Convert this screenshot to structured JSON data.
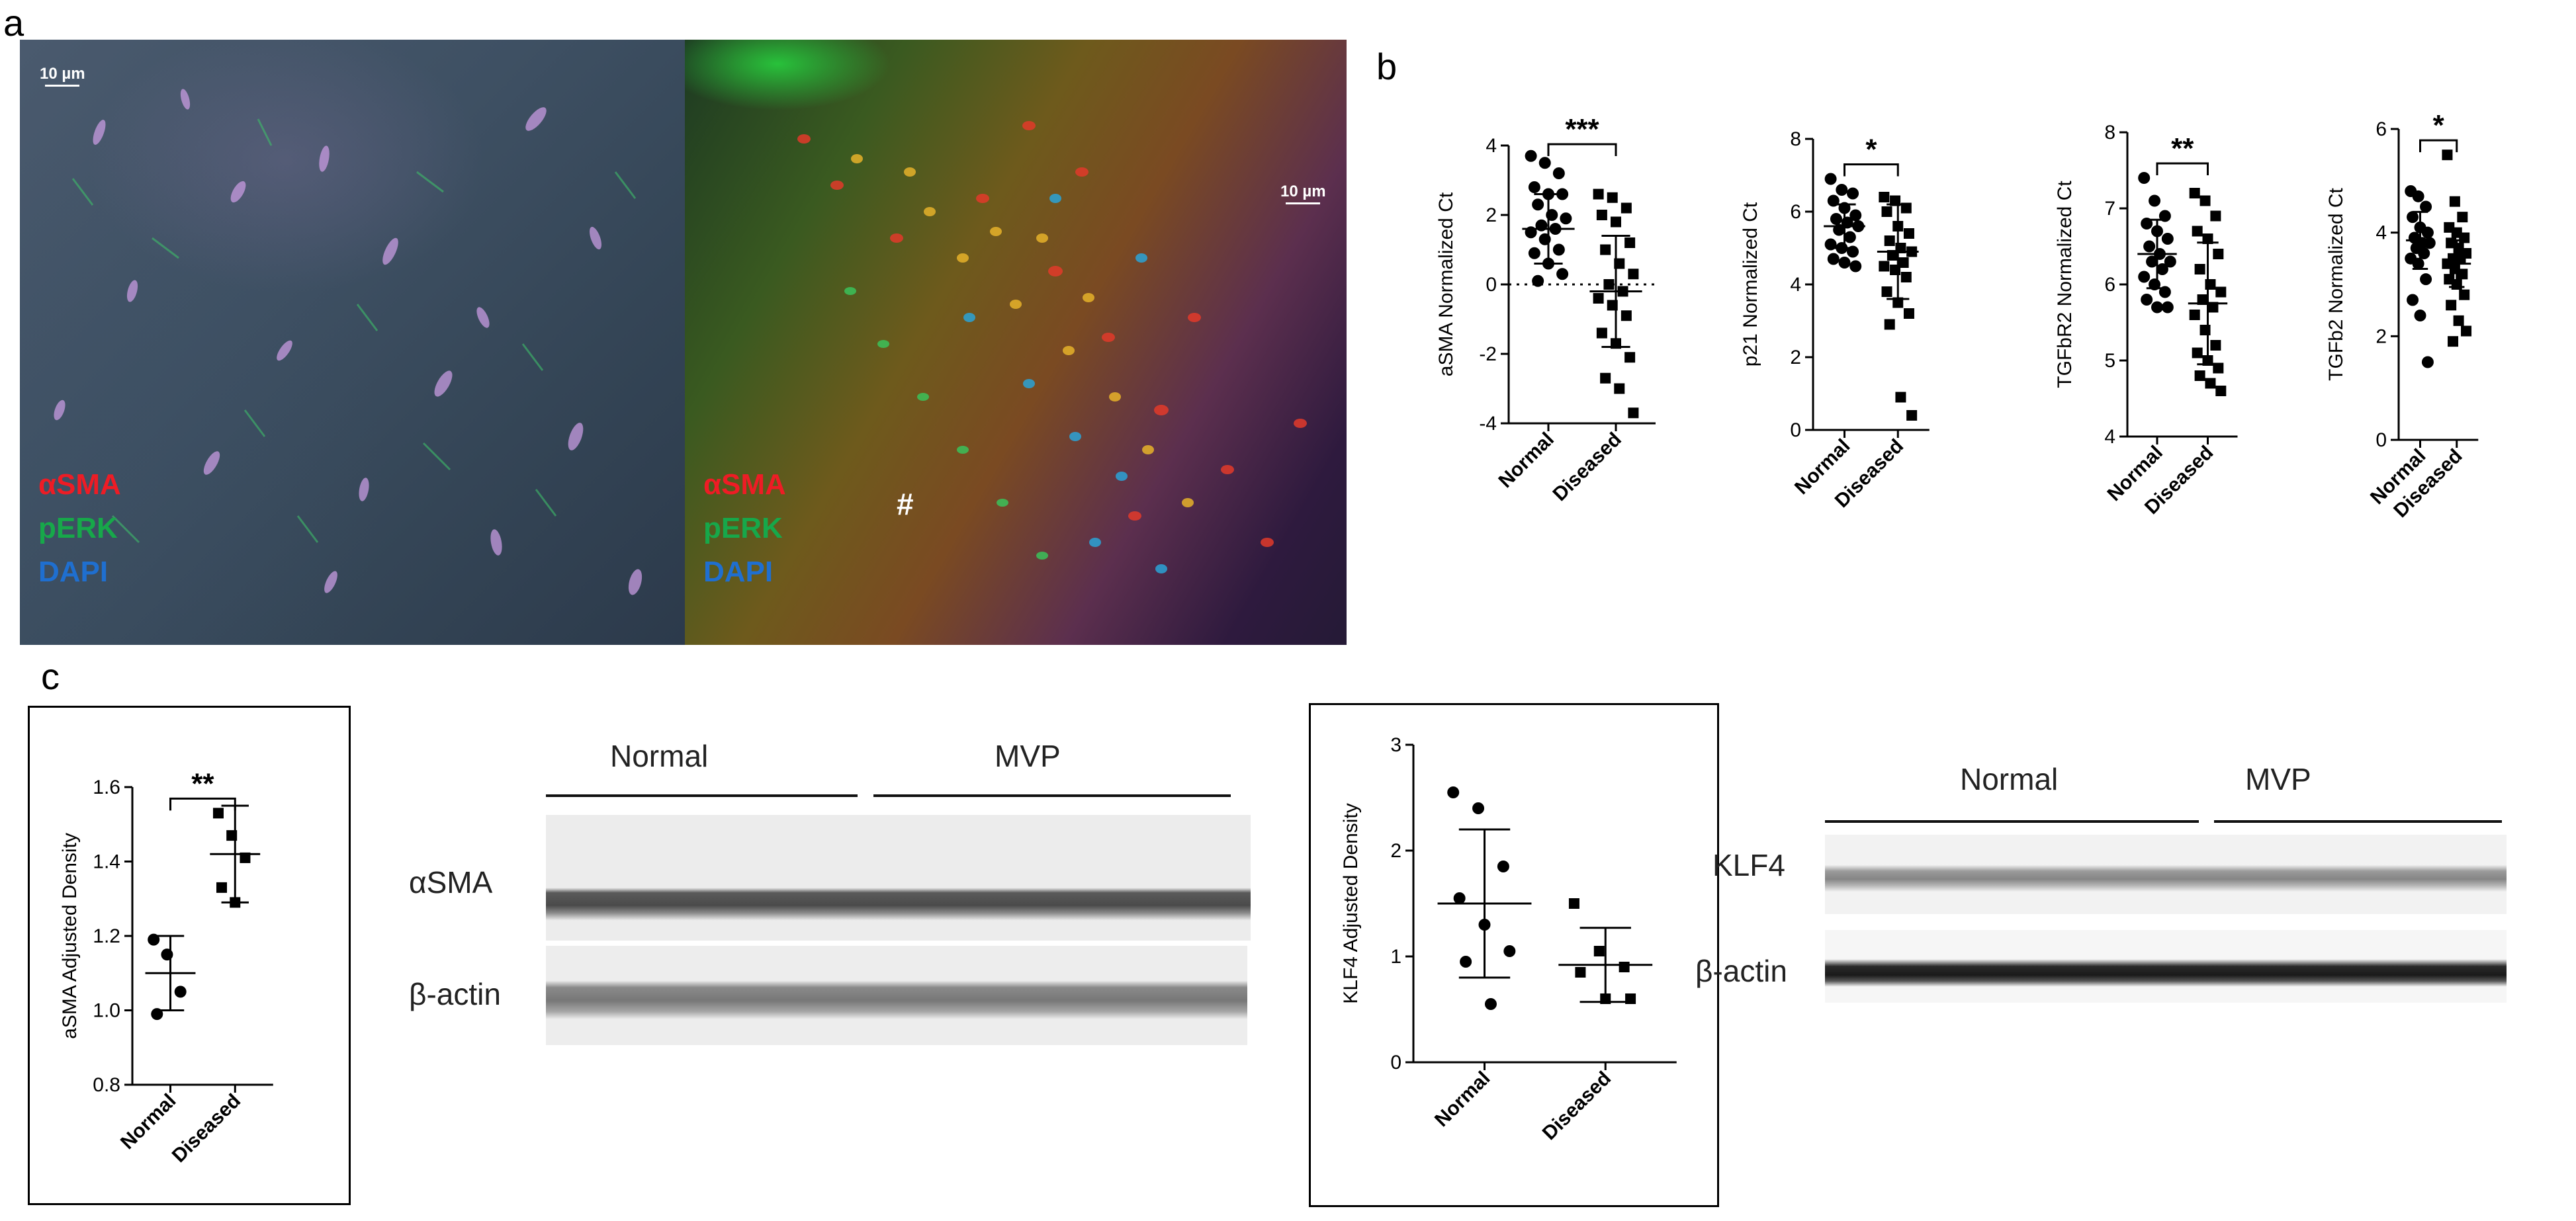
{
  "panels": {
    "a": "a",
    "b": "b",
    "c": "c"
  },
  "micrographs": [
    {
      "scale_bar": "10 µm",
      "stains": [
        "αSMA",
        "pERK",
        "DAPI"
      ],
      "hash": ""
    },
    {
      "scale_bar": "10 µm",
      "stains": [
        "αSMA",
        "pERK",
        "DAPI"
      ],
      "hash": "#"
    }
  ],
  "stain_colors": [
    "#ee1c25",
    "#17a84a",
    "#1f6fd0"
  ],
  "blots": {
    "asma": {
      "groups": [
        "Normal",
        "MVP"
      ],
      "rows": [
        "αSMA",
        "β-actin"
      ]
    },
    "klf4": {
      "groups": [
        "Normal",
        "MVP"
      ],
      "rows": [
        "KLF4",
        "β-actin"
      ]
    }
  },
  "chart_data": [
    {
      "type": "scatter",
      "ylabel": "aSMA Normalized Ct",
      "categories": [
        "Normal",
        "Diseased"
      ],
      "ylim": [
        -4,
        4
      ],
      "yticks": [
        -4,
        -2,
        0,
        2,
        4
      ],
      "zero_line": true,
      "significance": "***",
      "series": [
        {
          "values": [
            3.7,
            3.5,
            3.2,
            2.8,
            2.6,
            2.6,
            2.3,
            2.0,
            1.9,
            1.7,
            1.6,
            1.5,
            1.3,
            1.0,
            0.9,
            0.6,
            0.3,
            0.1
          ],
          "mean": 1.6,
          "sd": 1.0
        },
        {
          "values": [
            2.6,
            2.5,
            2.2,
            2.0,
            1.8,
            1.2,
            1.0,
            0.6,
            0.3,
            0.0,
            -0.2,
            -0.4,
            -0.6,
            -0.9,
            -1.4,
            -1.7,
            -2.1,
            -2.7,
            -3.0,
            -3.7
          ],
          "mean": -0.2,
          "sd": 1.6
        }
      ]
    },
    {
      "type": "scatter",
      "ylabel": "p21 Normalized Ct",
      "categories": [
        "Normal",
        "Diseased"
      ],
      "ylim": [
        0,
        8
      ],
      "yticks": [
        0,
        2,
        4,
        6,
        8
      ],
      "significance": "*",
      "series": [
        {
          "values": [
            6.9,
            6.6,
            6.5,
            6.3,
            6.1,
            5.9,
            5.8,
            5.7,
            5.6,
            5.5,
            5.3,
            5.1,
            5.0,
            4.9,
            4.7,
            4.6,
            4.5
          ],
          "mean": 5.6,
          "sd": 0.6
        },
        {
          "values": [
            6.4,
            6.3,
            6.1,
            6.0,
            5.6,
            5.4,
            5.2,
            5.0,
            4.9,
            4.8,
            4.6,
            4.5,
            4.4,
            4.2,
            3.8,
            3.5,
            3.2,
            2.9,
            0.9,
            0.4
          ],
          "mean": 4.9,
          "sd": 1.3
        }
      ]
    },
    {
      "type": "scatter",
      "ylabel": "TGFbR2 Normalized Ct",
      "categories": [
        "Normal",
        "Diseased"
      ],
      "ylim": [
        4,
        8
      ],
      "yticks": [
        4,
        5,
        6,
        7,
        8
      ],
      "significance": "**",
      "series": [
        {
          "values": [
            7.4,
            7.1,
            6.9,
            6.8,
            6.7,
            6.6,
            6.5,
            6.4,
            6.3,
            6.3,
            6.2,
            6.1,
            6.0,
            5.9,
            5.8,
            5.7,
            5.7
          ],
          "mean": 6.4,
          "sd": 0.45
        },
        {
          "values": [
            7.2,
            7.1,
            6.9,
            6.7,
            6.6,
            6.4,
            6.2,
            6.0,
            5.9,
            5.8,
            5.7,
            5.6,
            5.4,
            5.2,
            5.1,
            5.0,
            4.9,
            4.8,
            4.7,
            4.6
          ],
          "mean": 5.75,
          "sd": 0.8
        }
      ]
    },
    {
      "type": "scatter",
      "ylabel": "TGFb2 Normalized Ct",
      "categories": [
        "Normal",
        "Diseased"
      ],
      "ylim": [
        0,
        6
      ],
      "yticks": [
        0,
        2,
        4,
        6
      ],
      "significance": "*",
      "series": [
        {
          "values": [
            4.8,
            4.7,
            4.5,
            4.3,
            4.1,
            4.0,
            3.9,
            3.8,
            3.8,
            3.7,
            3.6,
            3.5,
            3.4,
            3.1,
            2.7,
            2.4,
            1.5
          ],
          "mean": 3.85,
          "sd": 0.55
        },
        {
          "values": [
            5.5,
            4.6,
            4.3,
            4.1,
            4.0,
            3.9,
            3.8,
            3.7,
            3.6,
            3.5,
            3.5,
            3.4,
            3.3,
            3.2,
            3.1,
            3.0,
            2.8,
            2.6,
            2.3,
            2.1,
            1.9
          ],
          "mean": 3.4,
          "sd": 0.45
        }
      ]
    },
    {
      "type": "scatter",
      "ylabel": "aSMA Adjusted Density",
      "categories": [
        "Normal",
        "Diseased"
      ],
      "ylim": [
        0.8,
        1.6
      ],
      "yticks": [
        0.8,
        1.0,
        1.2,
        1.4,
        1.6
      ],
      "yformat": 1,
      "significance": "**",
      "series": [
        {
          "values": [
            1.19,
            1.15,
            1.05,
            0.99
          ],
          "mean": 1.1,
          "sd": 0.1
        },
        {
          "values": [
            1.53,
            1.47,
            1.41,
            1.33,
            1.29
          ],
          "mean": 1.42,
          "sd": 0.13
        }
      ]
    },
    {
      "type": "scatter",
      "ylabel": "KLF4 Adjusted Density",
      "categories": [
        "Normal",
        "Diseased"
      ],
      "ylim": [
        0,
        3
      ],
      "yticks": [
        0,
        1,
        2,
        3
      ],
      "significance": "",
      "series": [
        {
          "values": [
            2.55,
            2.4,
            1.85,
            1.55,
            1.3,
            1.05,
            0.95,
            0.55
          ],
          "mean": 1.5,
          "sd": 0.7
        },
        {
          "values": [
            1.5,
            1.05,
            0.9,
            0.85,
            0.6,
            0.6
          ],
          "mean": 0.92,
          "sd": 0.35
        }
      ]
    }
  ]
}
